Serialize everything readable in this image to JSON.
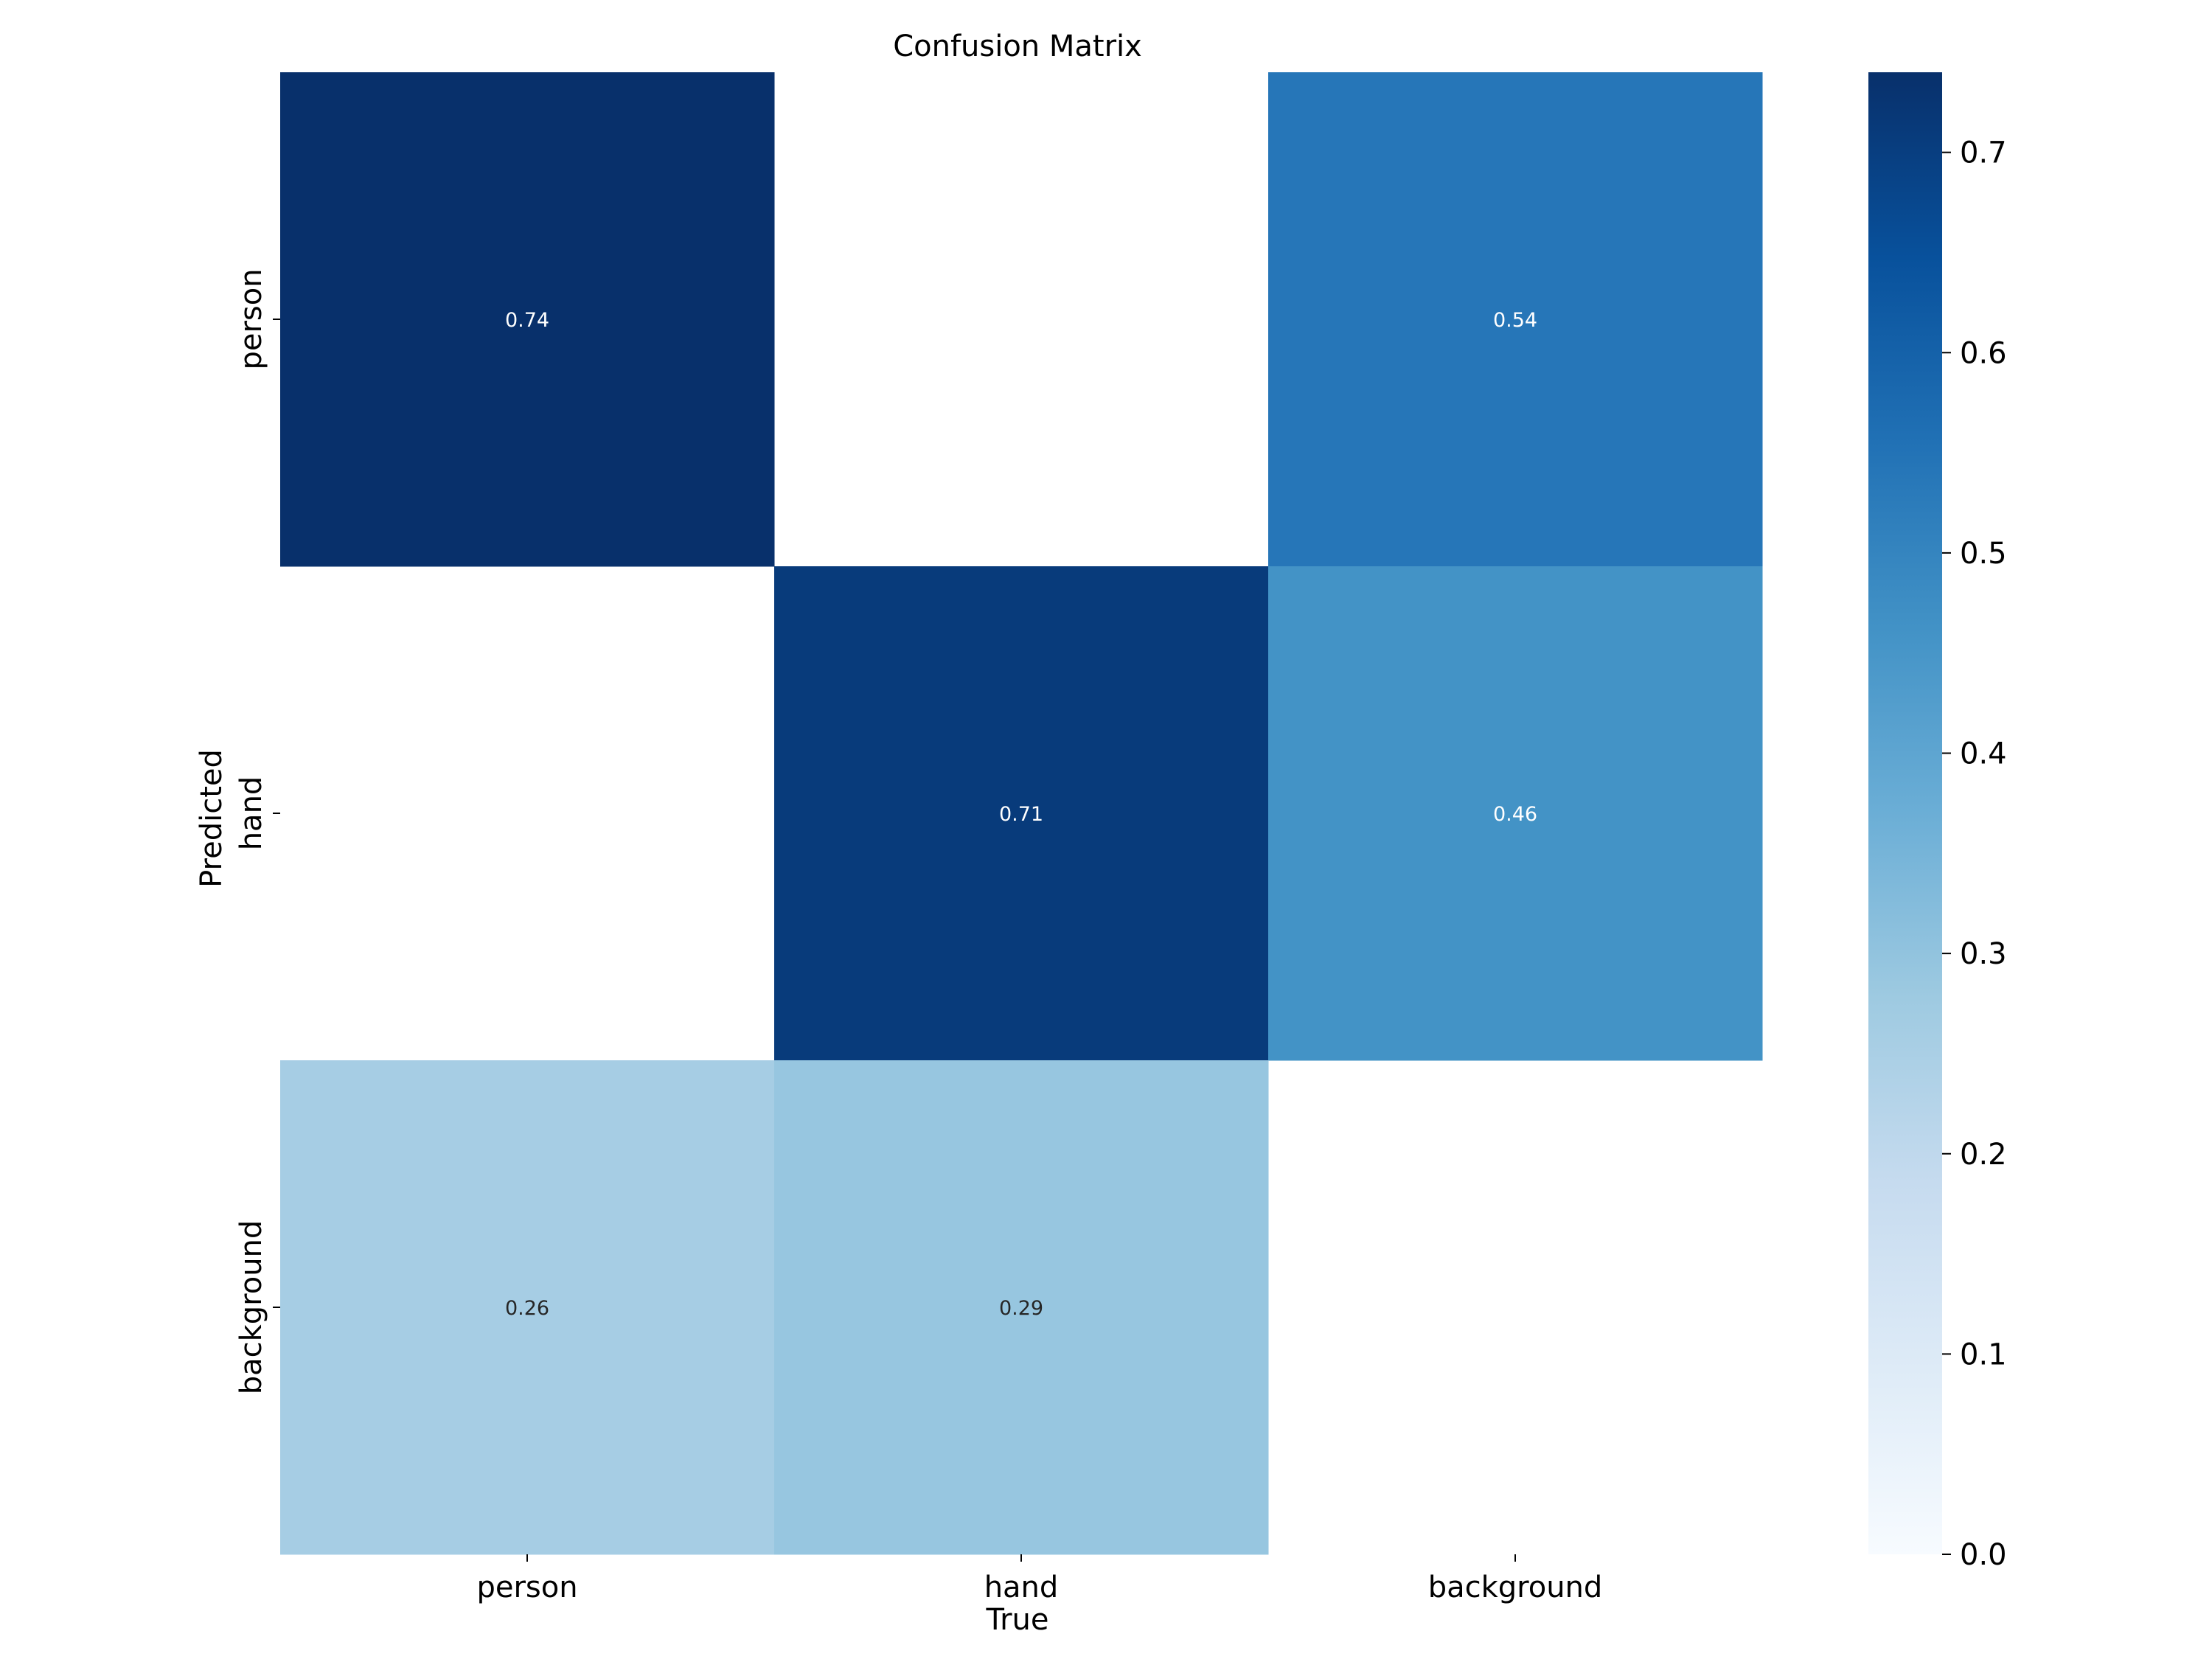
{
  "chart_data": {
    "type": "heatmap",
    "title": "Confusion Matrix",
    "xlabel": "True",
    "ylabel": "Predicted",
    "x_categories": [
      "person",
      "hand",
      "background"
    ],
    "y_categories": [
      "person",
      "hand",
      "background"
    ],
    "values": [
      [
        0.74,
        null,
        0.54
      ],
      [
        null,
        0.71,
        0.46
      ],
      [
        0.26,
        0.29,
        null
      ]
    ],
    "value_labels": [
      [
        "0.74",
        "",
        "0.54"
      ],
      [
        "",
        "0.71",
        "0.46"
      ],
      [
        "0.26",
        "0.29",
        ""
      ]
    ],
    "colormap": "Blues",
    "colorbar": {
      "vmin": 0.0,
      "vmax": 0.74,
      "ticks": [
        0.0,
        0.1,
        0.2,
        0.3,
        0.4,
        0.5,
        0.6,
        0.7
      ],
      "tick_labels": [
        "0.0",
        "0.1",
        "0.2",
        "0.3",
        "0.4",
        "0.5",
        "0.6",
        "0.7"
      ]
    },
    "colors": {
      "text_on_dark": "#ffffff",
      "text_on_light": "#262626",
      "axis": "#000000",
      "blues_stops": [
        "#f7fbff",
        "#deebf7",
        "#c6dbef",
        "#9ecae1",
        "#6baed6",
        "#4292c6",
        "#2171b5",
        "#08519c",
        "#08306b"
      ]
    }
  }
}
